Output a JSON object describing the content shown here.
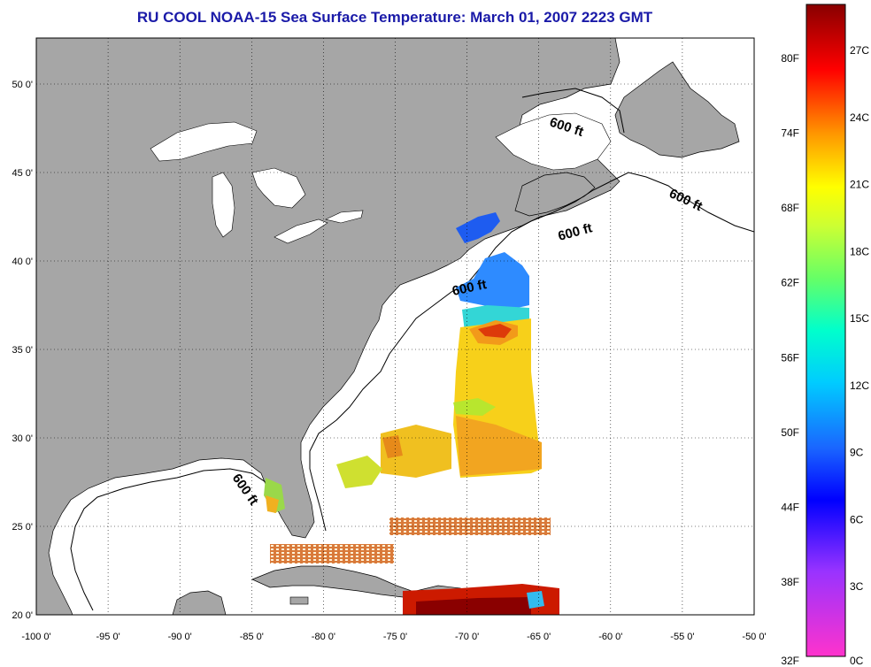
{
  "title": "RU COOL  NOAA-15  Sea Surface Temperature:  March 01, 2007 2223 GMT",
  "lon_ticks": [
    "-100 0'",
    "-95 0'",
    "-90 0'",
    "-85 0'",
    "-80 0'",
    "-75 0'",
    "-70 0'",
    "-65 0'",
    "-60 0'",
    "-55 0'",
    "-50 0'"
  ],
  "lat_ticks": [
    "50 0'",
    "45 0'",
    "40 0'",
    "35 0'",
    "30 0'",
    "25 0'",
    "20 0'"
  ],
  "depth_labels": [
    "600 ft",
    "600 ft",
    "600 ft",
    "600 ft",
    "600 ft"
  ],
  "colorbar": {
    "fahrenheit": [
      "80F",
      "74F",
      "68F",
      "62F",
      "56F",
      "50F",
      "44F",
      "38F",
      "32F"
    ],
    "celsius": [
      "27C",
      "24C",
      "21C",
      "18C",
      "15C",
      "12C",
      "9C",
      "6C",
      "3C",
      "0C"
    ]
  },
  "colors": {
    "land": "#a6a6a6",
    "ocean": "#ffffff",
    "title": "#1a1aa8"
  }
}
